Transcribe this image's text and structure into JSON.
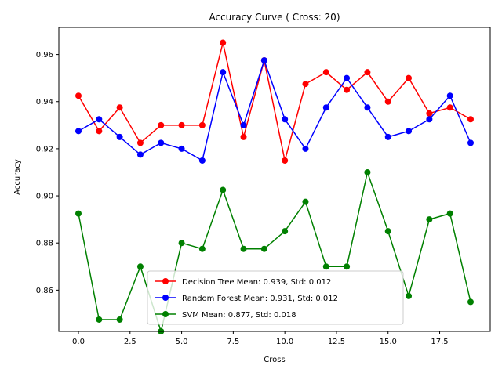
{
  "chart_data": {
    "type": "line",
    "title": "Accuracy Curve ( Cross: 20)",
    "xlabel": "Cross",
    "ylabel": "Accuracy",
    "xlim": [
      -0.95,
      19.95
    ],
    "ylim": [
      0.8425,
      0.9715
    ],
    "xticks": [
      0.0,
      2.5,
      5.0,
      7.5,
      10.0,
      12.5,
      15.0,
      17.5
    ],
    "xtick_labels": [
      "0.0",
      "2.5",
      "5.0",
      "7.5",
      "10.0",
      "12.5",
      "15.0",
      "17.5"
    ],
    "yticks": [
      0.86,
      0.88,
      0.9,
      0.92,
      0.94,
      0.96
    ],
    "ytick_labels": [
      "0.86",
      "0.88",
      "0.90",
      "0.92",
      "0.94",
      "0.96"
    ],
    "grid": false,
    "legend_position": "lower-center",
    "x": [
      0,
      1,
      2,
      3,
      4,
      5,
      6,
      7,
      8,
      9,
      10,
      11,
      12,
      13,
      14,
      15,
      16,
      17,
      18,
      19
    ],
    "series": [
      {
        "name": "Decision Tree Mean: 0.939, Std: 0.012",
        "color": "#ff0000",
        "values": [
          0.9425,
          0.9275,
          0.9375,
          0.9225,
          0.93,
          0.93,
          0.93,
          0.965,
          0.925,
          0.9575,
          0.915,
          0.9475,
          0.9525,
          0.945,
          0.9525,
          0.94,
          0.95,
          0.935,
          0.9375,
          0.9325
        ]
      },
      {
        "name": "Random Forest Mean: 0.931, Std: 0.012",
        "color": "#0000ff",
        "values": [
          0.9275,
          0.9325,
          0.925,
          0.9175,
          0.9225,
          0.92,
          0.915,
          0.9525,
          0.93,
          0.9575,
          0.9325,
          0.92,
          0.9375,
          0.95,
          0.9375,
          0.925,
          0.9275,
          0.9325,
          0.9425,
          0.9225
        ]
      },
      {
        "name": "SVM Mean: 0.877, Std: 0.018",
        "color": "#008000",
        "values": [
          0.8925,
          0.8475,
          0.8475,
          0.87,
          0.8425,
          0.88,
          0.8775,
          0.9025,
          0.8775,
          0.8775,
          0.885,
          0.8975,
          0.87,
          0.87,
          0.91,
          0.885,
          0.8575,
          0.89,
          0.8925,
          0.855
        ]
      }
    ]
  }
}
